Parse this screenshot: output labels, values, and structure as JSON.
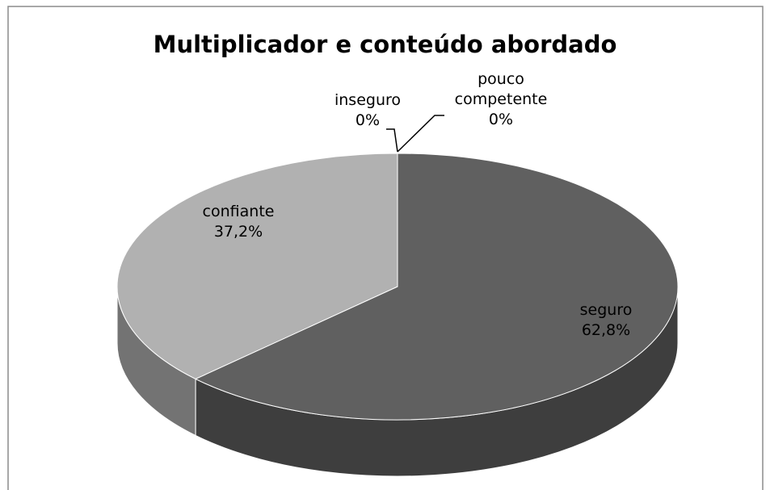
{
  "chart_data": {
    "type": "pie3d",
    "title": "Multiplicador e conteúdo abordado",
    "categories": [
      "seguro",
      "confiante",
      "inseguro",
      "pouco competente"
    ],
    "values": [
      62.8,
      37.2,
      0,
      0
    ],
    "value_labels": [
      "62,8%",
      "37,2%",
      "0%",
      "0%"
    ],
    "colors": [
      "#606060",
      "#b1b1b1",
      "#808080",
      "#909090"
    ]
  }
}
